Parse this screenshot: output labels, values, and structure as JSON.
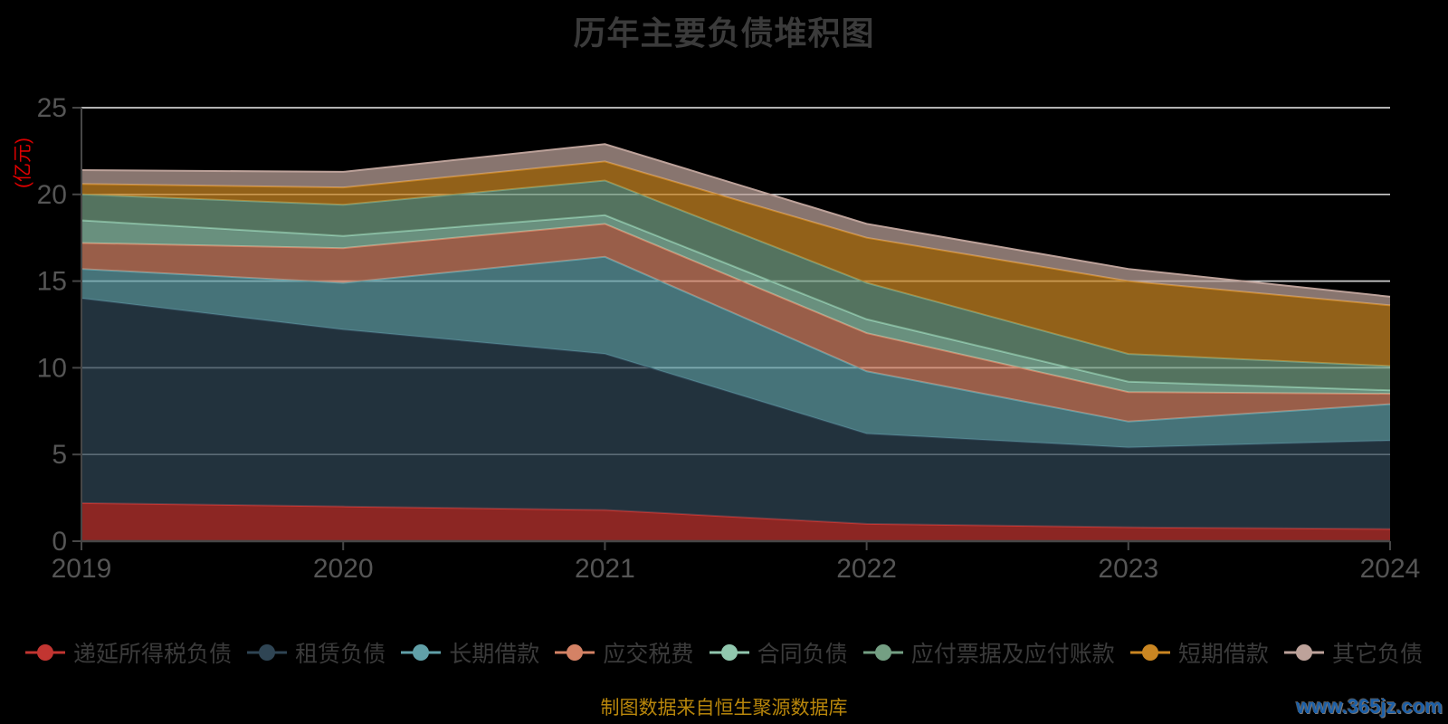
{
  "title": "历年主要负债堆积图",
  "y_axis": {
    "name": "(亿元)",
    "ticks": [
      0,
      5,
      10,
      15,
      20,
      25
    ],
    "max": 25
  },
  "x_axis": {
    "ticks": [
      "2019",
      "2020",
      "2021",
      "2022",
      "2023",
      "2024"
    ]
  },
  "footer": {
    "source_note": "制图数据来自恒生聚源数据库",
    "watermark": "www.365jz.com"
  },
  "colors": {
    "background": "#000000",
    "title_text": "#3b3b3b",
    "axis_text": "#555555",
    "axis_line": "#464646",
    "grid_line": "#d9d9d9",
    "legend_text": "#3b3b3b",
    "y_name_text": "#dd0000",
    "source_text": "#b8860b",
    "watermark_text": "#1b5fa8"
  },
  "chart_data": {
    "type": "area",
    "stacked": true,
    "title": "历年主要负债堆积图",
    "x": [
      "2019",
      "2020",
      "2021",
      "2022",
      "2023",
      "2024"
    ],
    "xlabel": "",
    "ylabel": "(亿元)",
    "ylim": [
      0,
      25
    ],
    "y_ticks": [
      0,
      5,
      10,
      15,
      20,
      25
    ],
    "grid": true,
    "legend_position": "bottom",
    "area_opacity": 0.72,
    "series": [
      {
        "name": "递延所得税负债",
        "color": "#c23531",
        "values": [
          2.2,
          2.0,
          1.8,
          1.0,
          0.8,
          0.7
        ]
      },
      {
        "name": "租赁负债",
        "color": "#2f4554",
        "values": [
          11.8,
          10.2,
          9.0,
          5.2,
          4.6,
          5.1
        ]
      },
      {
        "name": "长期借款",
        "color": "#61a0a8",
        "values": [
          1.7,
          2.7,
          5.6,
          3.6,
          1.5,
          2.1
        ]
      },
      {
        "name": "应交税费",
        "color": "#d48265",
        "values": [
          1.5,
          2.0,
          1.9,
          2.2,
          1.7,
          0.6
        ]
      },
      {
        "name": "合同负债",
        "color": "#91c7ae",
        "values": [
          1.3,
          0.7,
          0.5,
          0.8,
          0.6,
          0.2
        ]
      },
      {
        "name": "应付票据及应付账款",
        "color": "#749f83",
        "values": [
          1.5,
          1.8,
          2.0,
          2.1,
          1.6,
          1.4
        ]
      },
      {
        "name": "短期借款",
        "color": "#ca8622",
        "values": [
          0.6,
          1.0,
          1.1,
          2.6,
          4.2,
          3.5
        ]
      },
      {
        "name": "其它负债",
        "color": "#bda29a",
        "values": [
          0.8,
          0.9,
          1.0,
          0.8,
          0.7,
          0.5
        ]
      }
    ]
  }
}
